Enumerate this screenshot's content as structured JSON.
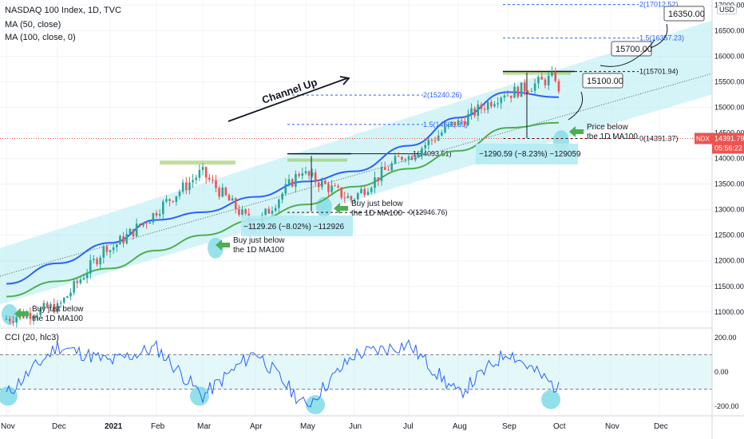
{
  "header": {
    "symbol_line": "NASDAQ 100 Index, 1D, TVC",
    "ma50_label": "MA (50, close)",
    "ma100_label": "MA (100, close, 0)",
    "currency": "USD"
  },
  "price_scale": {
    "ticks": [
      "17000.00",
      "16500.00",
      "16000.00",
      "15500.00",
      "15000.00",
      "14500.00",
      "14000.00",
      "13500.00",
      "13000.00",
      "12500.00",
      "12000.00",
      "11500.00",
      "11000.00"
    ],
    "last_symbol": "NDX",
    "last_price": "14391.79",
    "countdown": "05:56:22"
  },
  "cci": {
    "label": "CCI (20, hlc3)",
    "ticks": [
      "200.00",
      "0.00",
      "-200.00"
    ]
  },
  "time_axis": [
    "Nov",
    "Dec",
    "2021",
    "Feb",
    "Mar",
    "Apr",
    "May",
    "Jun",
    "Jul",
    "Aug",
    "Sep",
    "Oct",
    "Nov",
    "Dec"
  ],
  "annotations": {
    "channel": "Channel Up",
    "buy_label": "Buy just below the 1D MA100",
    "price_below": "Price below the 1D MA100",
    "drop1": "−1129.26 (−8.02%) −112926",
    "drop2": "−1290.59 (−8.23%) −129059",
    "fib_2a": "2(15240.26)",
    "fib_15a": "1.5(14666.89)",
    "fib_1a": "1(14093.51)",
    "fib_0a": "0(12946.76)",
    "fib_2b": "2(17012.52)",
    "fib_15b": "1.5(16357.23)",
    "fib_1b": "1(15701.94)",
    "fib_0b": "0(14391.37)",
    "targets": [
      "15100.00",
      "15700.00",
      "16350.00"
    ]
  },
  "colors": {
    "channel_fill": "#b2ebf2",
    "ma50": "#2962ff",
    "ma100": "#4caf50",
    "up_candle": "#26a69a",
    "down_candle": "#ef5350",
    "cci_line": "#2962ff",
    "arrow_green": "#4caf50",
    "fib_line": "#2962ff"
  },
  "chart_data": [
    {
      "type": "candlestick",
      "title": "NASDAQ 100 Index, 1D, TVC",
      "ylim": [
        10700,
        17100
      ],
      "y_scale": "linear",
      "x_range": [
        "2020-11",
        "2022-01"
      ],
      "series": [
        {
          "name": "MA (50, close)",
          "x": [
            "2020-11",
            "2020-12",
            "2021-01",
            "2021-02",
            "2021-03",
            "2021-04",
            "2021-05",
            "2021-06",
            "2021-07",
            "2021-08",
            "2021-09",
            "2021-10"
          ],
          "values": [
            11550,
            11950,
            12350,
            12800,
            12950,
            13250,
            13550,
            13750,
            14250,
            14800,
            15300,
            15200
          ]
        },
        {
          "name": "MA (100, close, 0)",
          "x": [
            "2020-11",
            "2020-12",
            "2021-01",
            "2021-02",
            "2021-03",
            "2021-04",
            "2021-05",
            "2021-06",
            "2021-07",
            "2021-08",
            "2021-09",
            "2021-10"
          ],
          "values": [
            11300,
            11600,
            11850,
            12200,
            12500,
            12800,
            13100,
            13450,
            13800,
            14150,
            14600,
            14700
          ]
        },
        {
          "name": "close",
          "x": [
            "2020-11",
            "2020-12",
            "2021-01",
            "2021-02",
            "2021-03",
            "2021-04",
            "2021-05",
            "2021-06",
            "2021-07",
            "2021-08",
            "2021-09",
            "2021-10"
          ],
          "values": [
            11100,
            12300,
            12900,
            13700,
            12700,
            13800,
            13200,
            14100,
            14700,
            15300,
            15600,
            14392
          ]
        }
      ],
      "channel": {
        "lower": [
          [
            "2020-11",
            11000
          ],
          [
            "2021-10",
            14300
          ]
        ],
        "upper": [
          [
            "2020-11",
            12100
          ],
          [
            "2021-10",
            15600
          ]
        ]
      },
      "fibonacci": [
        {
          "label": "2(15240.26)",
          "value": 15240.26
        },
        {
          "label": "1.5(14666.89)",
          "value": 14666.89
        },
        {
          "label": "1(14093.51)",
          "value": 14093.51
        },
        {
          "label": "0(12946.76)",
          "value": 12946.76
        },
        {
          "label": "2(17012.52)",
          "value": 17012.52
        },
        {
          "label": "1.5(16357.23)",
          "value": 16357.23
        },
        {
          "label": "1(15701.94)",
          "value": 15701.94
        },
        {
          "label": "0(14391.37)",
          "value": 14391.37
        }
      ],
      "targets": [
        15100,
        15700,
        16350
      ]
    },
    {
      "type": "line",
      "title": "CCI (20, hlc3)",
      "ylim": [
        -250,
        250
      ],
      "series": [
        {
          "name": "CCI (20, hlc3)",
          "x": [
            "2020-11",
            "2020-12",
            "2021-01",
            "2021-02",
            "2021-03",
            "2021-04",
            "2021-05",
            "2021-06",
            "2021-07",
            "2021-08",
            "2021-09",
            "2021-10"
          ],
          "values": [
            -130,
            150,
            60,
            140,
            -140,
            120,
            -200,
            100,
            160,
            -130,
            120,
            -100
          ]
        }
      ]
    }
  ]
}
